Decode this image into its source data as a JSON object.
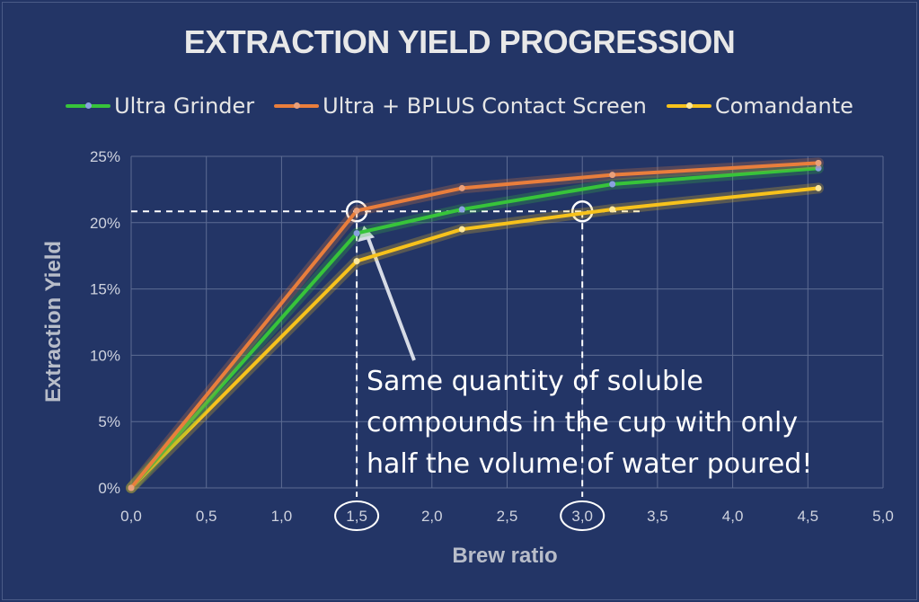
{
  "chart_data": {
    "type": "line",
    "title": "EXTRACTION YIELD PROGRESSION",
    "xlabel": "Brew ratio",
    "ylabel": "Extraction Yield",
    "xlim": [
      0,
      5
    ],
    "ylim": [
      0,
      25
    ],
    "x_ticks": [
      "0,0",
      "0,5",
      "1,0",
      "1,5",
      "2,0",
      "2,5",
      "3,0",
      "3,5",
      "4,0",
      "4,5",
      "5,0"
    ],
    "y_ticks": [
      "0%",
      "5%",
      "10%",
      "15%",
      "20%",
      "25%"
    ],
    "grid": true,
    "legend_position": "top",
    "series": [
      {
        "name": "Ultra Grinder",
        "color": "#37c43a",
        "marker_color": "#8aa0e0",
        "x": [
          0,
          1.5,
          2.2,
          3.2,
          4.57
        ],
        "y": [
          0,
          19.2,
          21.0,
          22.9,
          24.1
        ]
      },
      {
        "name": "Ultra + BPLUS Contact Screen",
        "color": "#e97e3c",
        "marker_color": "#e9a07a",
        "x": [
          0,
          1.5,
          2.2,
          3.2,
          4.57
        ],
        "y": [
          0,
          20.9,
          22.6,
          23.6,
          24.5
        ]
      },
      {
        "name": "Comandante",
        "color": "#f7c21c",
        "marker_color": "#fde79a",
        "x": [
          0,
          1.5,
          2.2,
          3.2,
          4.57
        ],
        "y": [
          0,
          17.1,
          19.5,
          21.0,
          22.6
        ]
      }
    ],
    "reference": {
      "yield": 20.85,
      "x_marks": [
        1.5,
        3.0
      ],
      "dashed_line_x_end": 3.4
    },
    "annotation": {
      "lines": [
        "Same quantity of soluble",
        "compounds in the cup with only",
        "half the volume of water poured!"
      ],
      "points_to": {
        "x": 1.5,
        "y": 20.85
      }
    }
  }
}
